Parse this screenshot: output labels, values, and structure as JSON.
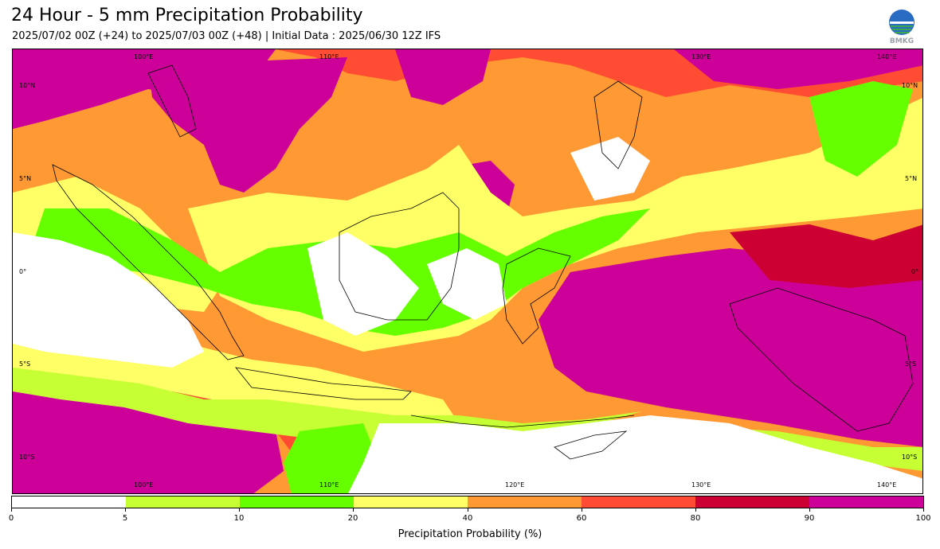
{
  "header": {
    "title": "24 Hour - 5 mm Precipitation Probability",
    "subtitle": "2025/07/02 00Z (+24) to 2025/07/03 00Z (+48) | Initial Data : 2025/06/30 12Z IFS"
  },
  "logo": {
    "text": "BMKG",
    "icon": "bmkg-logo"
  },
  "map": {
    "lon_labels": [
      "100°E",
      "110°E",
      "120°E",
      "130°E",
      "140°E"
    ],
    "lat_labels": [
      "10°N",
      "5°N",
      "0°",
      "5°S",
      "10°S"
    ]
  },
  "colorbar": {
    "ticks": [
      "0",
      "5",
      "10",
      "20",
      "40",
      "60",
      "80",
      "90",
      "100"
    ],
    "colors": [
      "#ffffff",
      "#c6ff33",
      "#66ff00",
      "#ffff66",
      "#ff9933",
      "#ff4c33",
      "#cc0033",
      "#cc0099"
    ],
    "label": "Precipitation Probability (%)"
  }
}
